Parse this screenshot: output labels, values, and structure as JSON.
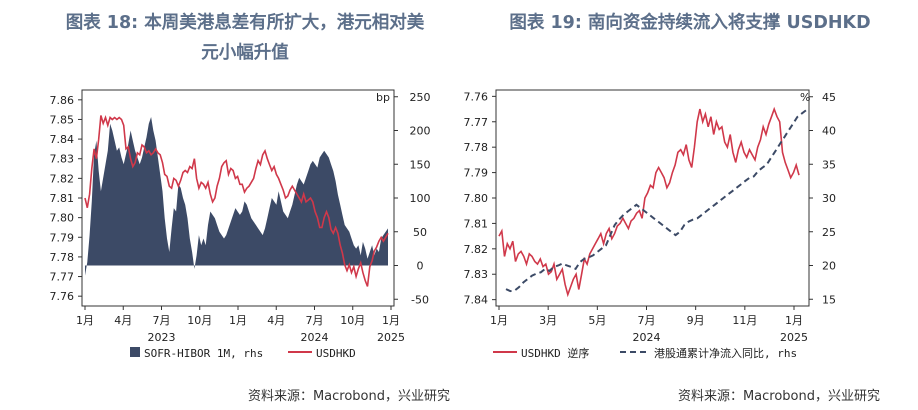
{
  "colors": {
    "title": "#5c6f8a",
    "area": "#3c4a66",
    "red": "#d0384a",
    "dashed": "#3c4a66"
  },
  "figure1": {
    "title_line1": "图表 18: 本周美港息差有所扩大，港元相对美",
    "title_line2": "元小幅升值",
    "source": "资料来源：Macrobond，兴业研究"
  },
  "figure2": {
    "title": "图表 19: 南向资金持续流入将支撑 USDHKD",
    "source": "资料来源：Macrobond，兴业研究"
  },
  "chart_data": [
    {
      "type": "area",
      "left_axis": {
        "min": 7.755,
        "max": 7.865,
        "ticks": [
          "7.86",
          "7.85",
          "7.84",
          "7.83",
          "7.82",
          "7.81",
          "7.80",
          "7.79",
          "7.78",
          "7.77",
          "7.76"
        ]
      },
      "right_axis": {
        "unit": "bp",
        "min": -60,
        "max": 260,
        "ticks": [
          "250",
          "200",
          "150",
          "100",
          "50",
          "0",
          "-50"
        ]
      },
      "x_ticks": [
        "1月",
        "4月",
        "7月",
        "10月",
        "1月",
        "4月",
        "7月",
        "10月",
        "1月"
      ],
      "year_labels": [
        "2023",
        "2024",
        "2025"
      ],
      "legend": [
        "SOFR-HIBOR 1M, rhs",
        "USDHKD"
      ],
      "series": [
        {
          "name": "SOFR-HIBOR 1M, rhs",
          "kind": "area",
          "axis": "right",
          "values": [
            -15,
            5,
            45,
            95,
            165,
            185,
            140,
            110,
            130,
            150,
            170,
            210,
            200,
            185,
            170,
            175,
            160,
            150,
            165,
            180,
            200,
            185,
            170,
            160,
            150,
            160,
            175,
            190,
            210,
            220,
            200,
            185,
            160,
            135,
            110,
            70,
            40,
            20,
            55,
            85,
            80,
            120,
            115,
            100,
            90,
            70,
            40,
            20,
            -5,
            15,
            45,
            30,
            40,
            30,
            60,
            80,
            75,
            70,
            60,
            50,
            45,
            40,
            45,
            55,
            65,
            75,
            85,
            80,
            75,
            80,
            95,
            90,
            80,
            70,
            65,
            60,
            55,
            50,
            45,
            55,
            70,
            85,
            100,
            95,
            90,
            110,
            95,
            80,
            75,
            70,
            80,
            90,
            105,
            120,
            130,
            125,
            120,
            130,
            140,
            150,
            155,
            150,
            145,
            160,
            165,
            170,
            165,
            160,
            150,
            140,
            125,
            105,
            90,
            75,
            60,
            55,
            50,
            40,
            30,
            25,
            30,
            15,
            35,
            25,
            10,
            20,
            30,
            15,
            25,
            20,
            40,
            45,
            50,
            55
          ]
        },
        {
          "name": "USDHKD",
          "kind": "line",
          "axis": "left",
          "values": [
            7.81,
            7.805,
            7.812,
            7.825,
            7.835,
            7.83,
            7.84,
            7.852,
            7.848,
            7.851,
            7.847,
            7.851,
            7.85,
            7.851,
            7.85,
            7.851,
            7.85,
            7.847,
            7.835,
            7.836,
            7.83,
            7.826,
            7.828,
            7.833,
            7.832,
            7.837,
            7.836,
            7.833,
            7.834,
            7.832,
            7.833,
            7.835,
            7.833,
            7.832,
            7.828,
            7.822,
            7.821,
            7.816,
            7.815,
            7.82,
            7.819,
            7.816,
            7.819,
            7.823,
            7.824,
            7.823,
            7.826,
            7.825,
            7.83,
            7.82,
            7.815,
            7.818,
            7.817,
            7.815,
            7.818,
            7.812,
            7.808,
            7.81,
            7.816,
            7.82,
            7.826,
            7.828,
            7.829,
            7.822,
            7.825,
            7.824,
            7.82,
            7.821,
            7.817,
            7.817,
            7.813,
            7.815,
            7.816,
            7.818,
            7.82,
            7.825,
            7.829,
            7.827,
            7.832,
            7.834,
            7.83,
            7.827,
            7.824,
            7.826,
            7.822,
            7.82,
            7.817,
            7.814,
            7.81,
            7.811,
            7.814,
            7.816,
            7.814,
            7.812,
            7.81,
            7.808,
            7.812,
            7.808,
            7.809,
            7.81,
            7.808,
            7.803,
            7.8,
            7.795,
            7.795,
            7.8,
            7.803,
            7.8,
            7.794,
            7.792,
            7.795,
            7.792,
            7.786,
            7.782,
            7.776,
            7.773,
            7.776,
            7.772,
            7.775,
            7.77,
            7.774,
            7.777,
            7.772,
            7.768,
            7.765,
            7.775,
            7.778,
            7.783,
            7.785,
            7.788,
            7.79,
            7.788,
            7.79,
            7.792
          ]
        }
      ]
    },
    {
      "type": "line",
      "left_axis": {
        "inverted": true,
        "min": 7.7575,
        "max": 7.8425,
        "ticks": [
          "7.76",
          "7.77",
          "7.78",
          "7.79",
          "7.80",
          "7.81",
          "7.82",
          "7.83",
          "7.84"
        ]
      },
      "right_axis": {
        "unit": "%",
        "min": 14,
        "max": 46,
        "ticks": [
          "45",
          "40",
          "35",
          "30",
          "25",
          "20",
          "15"
        ]
      },
      "x_ticks": [
        "1月",
        "3月",
        "5月",
        "7月",
        "9月",
        "11月",
        "1月"
      ],
      "year_labels": [
        "2024",
        "2025"
      ],
      "legend": [
        "USDHKD 逆序",
        "港股通累计净流入同比, rhs"
      ],
      "series": [
        {
          "name": "USDHKD 逆序",
          "kind": "line",
          "axis": "left",
          "values": [
            7.815,
            7.813,
            7.823,
            7.818,
            7.82,
            7.817,
            7.825,
            7.822,
            7.821,
            7.823,
            7.826,
            7.822,
            7.823,
            7.825,
            7.826,
            7.824,
            7.827,
            7.826,
            7.83,
            7.829,
            7.826,
            7.832,
            7.83,
            7.828,
            7.834,
            7.838,
            7.835,
            7.832,
            7.83,
            7.836,
            7.83,
            7.824,
            7.826,
            7.822,
            7.82,
            7.818,
            7.816,
            7.814,
            7.818,
            7.814,
            7.812,
            7.816,
            7.814,
            7.811,
            7.81,
            7.808,
            7.81,
            7.812,
            7.809,
            7.808,
            7.806,
            7.805,
            7.808,
            7.8,
            7.798,
            7.795,
            7.796,
            7.79,
            7.788,
            7.79,
            7.792,
            7.796,
            7.794,
            7.79,
            7.787,
            7.782,
            7.781,
            7.783,
            7.779,
            7.785,
            7.788,
            7.78,
            7.77,
            7.765,
            7.77,
            7.767,
            7.772,
            7.768,
            7.775,
            7.77,
            7.773,
            7.772,
            7.778,
            7.78,
            7.775,
            7.782,
            7.786,
            7.781,
            7.778,
            7.782,
            7.784,
            7.781,
            7.783,
            7.785,
            7.78,
            7.777,
            7.772,
            7.775,
            7.771,
            7.768,
            7.765,
            7.768,
            7.77,
            7.782,
            7.786,
            7.789,
            7.792,
            7.79,
            7.787,
            7.791
          ]
        },
        {
          "name": "港股通累计净流入同比, rhs",
          "kind": "dashed",
          "axis": "right",
          "values": [
            16.5,
            16.2,
            16.3,
            16.8,
            17.5,
            18.0,
            18.5,
            18.8,
            19.0,
            19.5,
            19.2,
            19.8,
            20.0,
            20.3,
            20.0,
            19.8,
            19.5,
            20.5,
            21.0,
            21.2,
            21.5,
            22.0,
            22.5,
            23.0,
            24.5,
            26.0,
            26.8,
            27.5,
            28.0,
            28.5,
            29.0,
            28.5,
            28.0,
            27.5,
            27.0,
            26.5,
            26.0,
            25.5,
            25.0,
            24.5,
            25.0,
            26.0,
            26.5,
            26.8,
            27.0,
            27.5,
            28.0,
            28.5,
            29.0,
            29.5,
            30.0,
            30.5,
            31.0,
            31.5,
            32.0,
            32.5,
            33.0,
            33.2,
            34.0,
            34.5,
            35.0,
            36.0,
            37.0,
            38.0,
            39.0,
            40.0,
            41.0,
            42.0,
            42.5,
            43.0
          ]
        }
      ]
    }
  ]
}
